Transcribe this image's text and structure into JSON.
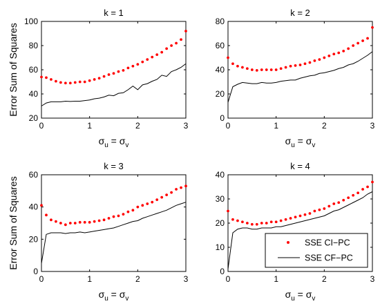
{
  "colors": {
    "dots": "#ff0000",
    "line": "#000000",
    "frame": "#000000",
    "background": "#ffffff"
  },
  "legend": {
    "position": "lower-right of panel k = 4",
    "entries": [
      {
        "label": "SSE CI−PC",
        "marker": "dot",
        "color": "#ff0000"
      },
      {
        "label": "SSE CF−PC",
        "marker": "line",
        "color": "#000000"
      }
    ]
  },
  "chart_data": [
    {
      "type": "scatter+line",
      "title": "k = 1",
      "xlabel": "σ_u = σ_v",
      "ylabel": "Error Sum of Squares",
      "xlim": [
        0,
        3
      ],
      "ylim": [
        20,
        100
      ],
      "xticks": [
        "0",
        "1",
        "2",
        "3"
      ],
      "yticks": [
        "20",
        "40",
        "60",
        "80",
        "100"
      ],
      "grid": false,
      "x": [
        0,
        0.1,
        0.2,
        0.3,
        0.4,
        0.5,
        0.6,
        0.7,
        0.8,
        0.9,
        1.0,
        1.1,
        1.2,
        1.3,
        1.4,
        1.5,
        1.6,
        1.7,
        1.8,
        1.9,
        2.0,
        2.1,
        2.2,
        2.3,
        2.4,
        2.5,
        2.6,
        2.7,
        2.8,
        2.9,
        3.0
      ],
      "series": [
        {
          "name": "SSE CI−PC",
          "style": "dots",
          "values": [
            54,
            53.5,
            52,
            50.5,
            49.5,
            49,
            49,
            49.5,
            50,
            50,
            51,
            52,
            53,
            54.5,
            56,
            57,
            58.5,
            59.5,
            61.5,
            63,
            64.5,
            66.5,
            68.5,
            70.5,
            72.5,
            74.5,
            77.5,
            80,
            82,
            85,
            92
          ]
        },
        {
          "name": "SSE CF−PC",
          "style": "line",
          "values": [
            30,
            32.5,
            33.5,
            33.5,
            33.5,
            34,
            33.8,
            34,
            34,
            34.5,
            35,
            36,
            36.5,
            37.5,
            39,
            38.5,
            40.5,
            41,
            43.5,
            46.5,
            43.5,
            47.5,
            48.5,
            50.5,
            52,
            55.5,
            54.5,
            58.5,
            60,
            62,
            65
          ]
        }
      ]
    },
    {
      "type": "scatter+line",
      "title": "k = 2",
      "xlabel": "σ_u = σ_v",
      "ylabel": "",
      "xlim": [
        0,
        3
      ],
      "ylim": [
        0,
        80
      ],
      "xticks": [
        "0",
        "1",
        "2",
        "3"
      ],
      "yticks": [
        "0",
        "20",
        "40",
        "60",
        "80"
      ],
      "grid": false,
      "x": [
        0,
        0.1,
        0.2,
        0.3,
        0.4,
        0.5,
        0.6,
        0.7,
        0.8,
        0.9,
        1.0,
        1.1,
        1.2,
        1.3,
        1.4,
        1.5,
        1.6,
        1.7,
        1.8,
        1.9,
        2.0,
        2.1,
        2.2,
        2.3,
        2.4,
        2.5,
        2.6,
        2.7,
        2.8,
        2.9,
        3.0
      ],
      "series": [
        {
          "name": "SSE CI−PC",
          "style": "dots",
          "values": [
            50,
            45,
            43,
            42,
            41,
            40,
            39.5,
            40,
            40,
            40,
            40,
            41,
            42,
            43,
            43.5,
            44,
            45,
            46,
            47.5,
            48.5,
            50,
            51.5,
            53,
            54,
            55.5,
            57.5,
            60,
            62,
            64,
            66,
            75
          ]
        },
        {
          "name": "SSE CF−PC",
          "style": "line",
          "values": [
            13,
            26,
            28,
            29.5,
            29,
            28.5,
            28.5,
            29.5,
            29,
            29,
            29.5,
            30.5,
            31,
            31.5,
            31.5,
            33,
            34,
            35,
            35.5,
            37,
            37.5,
            38.5,
            39.5,
            41,
            42,
            44,
            45,
            47,
            49.5,
            52,
            55
          ]
        }
      ]
    },
    {
      "type": "scatter+line",
      "title": "k = 3",
      "xlabel": "σ_u = σ_v",
      "ylabel": "Error Sum of Squares",
      "xlim": [
        0,
        3
      ],
      "ylim": [
        0,
        60
      ],
      "xticks": [
        "0",
        "1",
        "2",
        "3"
      ],
      "yticks": [
        "0",
        "20",
        "40",
        "60"
      ],
      "grid": false,
      "x": [
        0,
        0.1,
        0.2,
        0.3,
        0.4,
        0.5,
        0.6,
        0.7,
        0.8,
        0.9,
        1.0,
        1.1,
        1.2,
        1.3,
        1.4,
        1.5,
        1.6,
        1.7,
        1.8,
        1.9,
        2.0,
        2.1,
        2.2,
        2.3,
        2.4,
        2.5,
        2.6,
        2.7,
        2.8,
        2.9,
        3.0
      ],
      "series": [
        {
          "name": "SSE CI−PC",
          "style": "dots",
          "values": [
            41,
            35,
            32,
            31,
            30,
            29,
            30,
            30,
            30.5,
            30.5,
            30.5,
            31,
            31.5,
            32,
            33,
            34,
            34.5,
            35.5,
            37,
            38,
            40,
            41,
            42,
            43,
            44.5,
            46,
            47.5,
            49,
            51,
            52,
            53
          ]
        },
        {
          "name": "SSE CF−PC",
          "style": "line",
          "values": [
            5,
            23,
            24,
            24,
            24,
            23.5,
            24,
            24,
            24.5,
            24,
            24.5,
            25,
            25.5,
            26,
            26.5,
            27,
            28,
            29,
            30,
            31,
            31.5,
            33,
            34,
            35,
            36,
            37,
            38,
            39.5,
            41,
            42,
            43
          ]
        }
      ]
    },
    {
      "type": "scatter+line",
      "title": "k = 4",
      "xlabel": "σ_u = σ_v",
      "ylabel": "",
      "xlim": [
        0,
        3
      ],
      "ylim": [
        0,
        40
      ],
      "xticks": [
        "0",
        "1",
        "2",
        "3"
      ],
      "yticks": [
        "0",
        "10",
        "20",
        "30",
        "40"
      ],
      "grid": false,
      "x": [
        0,
        0.1,
        0.2,
        0.3,
        0.4,
        0.5,
        0.6,
        0.7,
        0.8,
        0.9,
        1.0,
        1.1,
        1.2,
        1.3,
        1.4,
        1.5,
        1.6,
        1.7,
        1.8,
        1.9,
        2.0,
        2.1,
        2.2,
        2.3,
        2.4,
        2.5,
        2.6,
        2.7,
        2.8,
        2.9,
        3.0
      ],
      "series": [
        {
          "name": "SSE CI−PC",
          "style": "dots",
          "values": [
            25,
            21.5,
            21,
            20.5,
            20,
            19.5,
            19.5,
            20,
            20,
            20.5,
            20.5,
            21,
            21.5,
            22,
            22.5,
            23,
            23.5,
            24,
            25,
            25.5,
            26,
            27,
            28,
            28.5,
            29.5,
            30.5,
            31.5,
            32.5,
            34,
            35,
            37
          ]
        },
        {
          "name": "SSE CF−PC",
          "style": "line",
          "values": [
            1,
            16,
            17.5,
            18,
            18,
            17.5,
            17.5,
            18,
            18,
            18,
            18.5,
            18.5,
            19,
            19.5,
            20,
            20.5,
            21,
            21.5,
            22,
            22.5,
            23,
            24,
            25,
            25.5,
            26.5,
            27.5,
            28.5,
            29.5,
            30.5,
            32,
            33
          ]
        }
      ]
    }
  ]
}
